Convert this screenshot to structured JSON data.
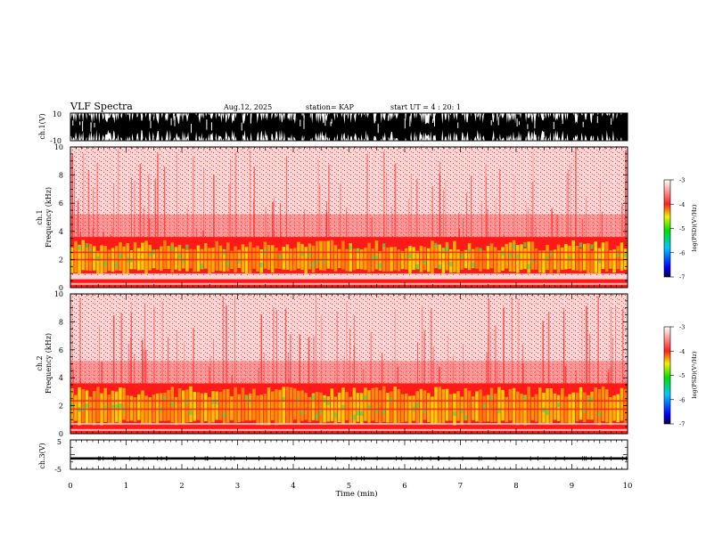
{
  "header": {
    "title": "VLF Spectra",
    "date": "Aug.12, 2025",
    "station": "station= KAP",
    "start": "start  UT  =   4 : 20: 1"
  },
  "colors": {
    "background": "#ffffff",
    "spec_red": "#ff1a1a",
    "spec_yellow": "#f2e600",
    "spec_green": "#4cd94c",
    "waveform": "#000000"
  },
  "chart_data": [
    {
      "id": "ch1_wave",
      "type": "line",
      "ylabel": "ch.1(V)",
      "ylim": [
        -10,
        10
      ],
      "y_tick_labels": [
        "10",
        "-10"
      ],
      "x": [
        0,
        10
      ],
      "trend": "dense waveform saturating between -10 and 10 V"
    },
    {
      "id": "ch1_spec",
      "type": "heatmap",
      "ylabel_line1": "ch.1",
      "ylabel_line2": "Frequency (kHz)",
      "ylim": [
        0,
        10
      ],
      "y_tick_labels": [
        "0",
        "2",
        "4",
        "6",
        "8",
        "10"
      ],
      "band_khz": {
        "strong": [
          1.0,
          3.6
        ],
        "low_band": [
          0.0,
          0.6
        ]
      },
      "colorbar": {
        "label": "log(PSD)(V²/Hz)",
        "range": [
          -7,
          -3
        ],
        "tick_labels": [
          "-3",
          "-4",
          "-5",
          "-6",
          "-7"
        ]
      }
    },
    {
      "id": "ch2_spec",
      "type": "heatmap",
      "ylabel_line1": "ch.2",
      "ylabel_line2": "Frequency (kHz)",
      "ylim": [
        0,
        10
      ],
      "y_tick_labels": [
        "0",
        "2",
        "4",
        "6",
        "8",
        "10"
      ],
      "band_khz": {
        "strong": [
          0.6,
          3.6
        ],
        "low_band": [
          0.0,
          0.6
        ]
      },
      "colorbar": {
        "label": "log(PSD)(V²/Hz)",
        "range": [
          -7,
          -3
        ],
        "tick_labels": [
          "-3",
          "-4",
          "-5",
          "-6",
          "-7"
        ]
      }
    },
    {
      "id": "ch3_wave",
      "type": "line",
      "ylabel": "ch.3(V)",
      "ylim": [
        -5,
        5
      ],
      "y_tick_labels": [
        "5",
        "-5"
      ],
      "level": -1.3,
      "amplitude": 0.4
    }
  ],
  "xaxis": {
    "label": "Time (min)",
    "range": [
      0,
      10
    ],
    "tick_labels": [
      "0",
      "1",
      "2",
      "3",
      "4",
      "5",
      "6",
      "7",
      "8",
      "9",
      "10"
    ]
  }
}
